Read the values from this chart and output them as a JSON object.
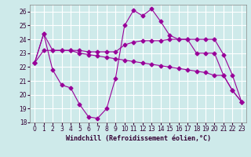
{
  "xlabel": "Windchill (Refroidissement éolien,°C)",
  "bg_color": "#ceeaea",
  "grid_color": "#ffffff",
  "line_color": "#990099",
  "xlim": [
    -0.5,
    23.5
  ],
  "ylim": [
    18,
    26.5
  ],
  "xticks": [
    0,
    1,
    2,
    3,
    4,
    5,
    6,
    7,
    8,
    9,
    10,
    11,
    12,
    13,
    14,
    15,
    16,
    17,
    18,
    19,
    20,
    21,
    22,
    23
  ],
  "yticks": [
    18,
    19,
    20,
    21,
    22,
    23,
    24,
    25,
    26
  ],
  "s1_x": [
    0,
    1,
    2,
    3,
    4,
    5,
    6,
    7,
    8,
    9,
    10,
    11,
    12,
    13,
    14,
    15,
    16,
    17,
    18,
    19,
    20,
    21,
    22,
    23
  ],
  "s1_y": [
    22.3,
    24.4,
    23.2,
    23.2,
    23.2,
    23.2,
    23.1,
    23.1,
    23.1,
    23.1,
    23.6,
    23.8,
    23.9,
    23.9,
    23.9,
    24.0,
    24.0,
    24.0,
    24.0,
    24.0,
    24.0,
    22.9,
    21.4,
    19.5
  ],
  "s2_x": [
    0,
    1,
    2,
    3,
    4,
    5,
    6,
    7,
    8,
    9,
    10,
    11,
    12,
    13,
    14,
    15,
    16,
    17,
    18,
    19,
    20,
    21,
    22,
    23
  ],
  "s2_y": [
    22.3,
    23.2,
    23.2,
    23.2,
    23.2,
    23.0,
    22.9,
    22.8,
    22.7,
    22.6,
    22.5,
    22.4,
    22.3,
    22.2,
    22.1,
    22.0,
    21.9,
    21.8,
    21.7,
    21.6,
    21.4,
    21.4,
    20.3,
    19.5
  ],
  "s3_x": [
    0,
    1,
    2,
    3,
    4,
    5,
    6,
    7,
    8,
    9,
    10,
    11,
    12,
    13,
    14,
    15,
    16,
    17,
    18,
    19,
    20,
    21,
    22,
    23
  ],
  "s3_y": [
    22.3,
    24.4,
    21.8,
    20.7,
    20.5,
    19.3,
    18.4,
    18.3,
    19.0,
    21.2,
    25.0,
    26.1,
    25.7,
    26.2,
    25.3,
    24.3,
    24.0,
    24.0,
    23.0,
    23.0,
    23.0,
    21.4,
    20.3,
    19.5
  ]
}
